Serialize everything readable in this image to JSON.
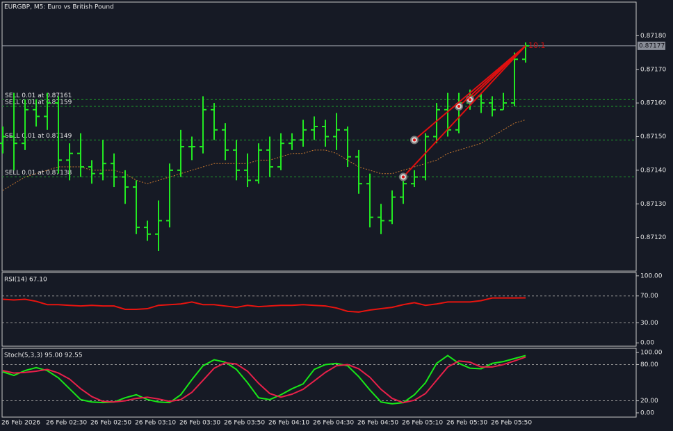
{
  "chart_data": [
    {
      "type": "ohlc",
      "title": "EURGBP, M5:  Euro vs British Pound",
      "color": "#22e822",
      "categories": [
        "26 Feb 2026",
        null,
        null,
        null,
        "26 Feb 02:30",
        null,
        null,
        null,
        "26 Feb 02:50",
        null,
        null,
        null,
        "26 Feb 03:10",
        null,
        null,
        null,
        "26 Feb 03:30",
        null,
        null,
        null,
        "26 Feb 03:50",
        null,
        null,
        null,
        "26 Feb 04:10",
        null,
        null,
        null,
        "26 Feb 04:30",
        null,
        null,
        null,
        "26 Feb 04:50",
        null,
        null,
        null,
        "26 Feb 05:10",
        null,
        null,
        null,
        "26 Feb 05:30",
        null,
        null,
        null,
        "26 Feb 05:50",
        null,
        null,
        null
      ],
      "open": [
        0.87148,
        0.8715,
        0.87148,
        0.87158,
        0.87156,
        0.8716,
        0.87143,
        0.87145,
        0.87141,
        0.87139,
        0.87142,
        0.87138,
        0.87135,
        0.87123,
        0.87121,
        0.87125,
        0.8714,
        0.87147,
        0.87147,
        0.87158,
        0.87152,
        0.87146,
        0.8714,
        0.87137,
        0.87146,
        0.87141,
        0.87148,
        0.87149,
        0.87152,
        0.87153,
        0.8715,
        0.87152,
        0.87144,
        0.87136,
        0.87126,
        0.87125,
        0.87132,
        0.87136,
        0.87138,
        0.8715,
        0.87158,
        0.87152,
        0.8716,
        0.87162,
        0.8716,
        0.87158,
        0.8716,
        0.87173
      ],
      "high": [
        0.87153,
        0.87163,
        0.87161,
        0.87161,
        0.87163,
        0.87162,
        0.87148,
        0.87151,
        0.87143,
        0.87149,
        0.87145,
        0.8714,
        0.87137,
        0.87125,
        0.87131,
        0.87142,
        0.87152,
        0.8715,
        0.87162,
        0.8716,
        0.87154,
        0.87149,
        0.87145,
        0.87148,
        0.8715,
        0.87151,
        0.87151,
        0.87155,
        0.87156,
        0.87155,
        0.87157,
        0.87153,
        0.87146,
        0.87139,
        0.8713,
        0.87134,
        0.87138,
        0.8714,
        0.87151,
        0.8716,
        0.87163,
        0.87163,
        0.87164,
        0.87163,
        0.87162,
        0.87163,
        0.87175,
        0.87178
      ],
      "low": [
        0.87145,
        0.8714,
        0.87146,
        0.87153,
        0.87152,
        0.87139,
        0.87137,
        0.87138,
        0.87136,
        0.87137,
        0.87135,
        0.8713,
        0.87121,
        0.87119,
        0.87116,
        0.87123,
        0.87138,
        0.87143,
        0.87145,
        0.87149,
        0.87143,
        0.87137,
        0.87135,
        0.87136,
        0.87138,
        0.8714,
        0.87146,
        0.87147,
        0.87149,
        0.87147,
        0.87146,
        0.87141,
        0.87133,
        0.87123,
        0.87121,
        0.87124,
        0.8713,
        0.87135,
        0.87137,
        0.87148,
        0.8715,
        0.87151,
        0.87158,
        0.87157,
        0.87156,
        0.87158,
        0.87159,
        0.87172
      ],
      "close": [
        0.8715,
        0.87148,
        0.87158,
        0.87156,
        0.8716,
        0.87143,
        0.87145,
        0.87141,
        0.87139,
        0.87142,
        0.87138,
        0.87135,
        0.87123,
        0.87121,
        0.87125,
        0.8714,
        0.87147,
        0.87147,
        0.87158,
        0.87152,
        0.87146,
        0.8714,
        0.87137,
        0.87146,
        0.87141,
        0.87148,
        0.87149,
        0.87152,
        0.87153,
        0.8715,
        0.87152,
        0.87144,
        0.87136,
        0.87126,
        0.87125,
        0.87132,
        0.87136,
        0.87138,
        0.8715,
        0.87158,
        0.87152,
        0.8716,
        0.87162,
        0.8716,
        0.87158,
        0.8716,
        0.87173,
        0.87177
      ],
      "ma": {
        "color": "#c8782f",
        "values": [
          0.87134,
          0.87136,
          0.87138,
          0.87139,
          0.8714,
          0.87141,
          0.87141,
          0.87141,
          0.8714,
          0.8714,
          0.8714,
          0.87139,
          0.87137,
          0.87136,
          0.87137,
          0.87138,
          0.87139,
          0.8714,
          0.87141,
          0.87142,
          0.87142,
          0.87142,
          0.87142,
          0.87143,
          0.87143,
          0.87144,
          0.87145,
          0.87145,
          0.87146,
          0.87146,
          0.87145,
          0.87143,
          0.87141,
          0.8714,
          0.87139,
          0.87139,
          0.8714,
          0.87141,
          0.87142,
          0.87143,
          0.87145,
          0.87146,
          0.87147,
          0.87148,
          0.8715,
          0.87152,
          0.87154,
          0.87155
        ]
      },
      "ylim": [
        0.8711,
        0.8719
      ],
      "yticks": [
        {
          "value": 0.8718,
          "label": "0.87180"
        },
        {
          "value": 0.8717,
          "label": "0.87170"
        },
        {
          "value": 0.8716,
          "label": "0.87160"
        },
        {
          "value": 0.8715,
          "label": "0.87150"
        },
        {
          "value": 0.8714,
          "label": "0.87140"
        },
        {
          "value": 0.8713,
          "label": "0.87130"
        },
        {
          "value": 0.8712,
          "label": "0.87120"
        }
      ],
      "current_price": 0.87177,
      "orders": [
        {
          "label": "SELL 0.01 at 0.87161",
          "price": 0.87161,
          "entry_bar": 42
        },
        {
          "label": "SELL 0.01 at 0.87159",
          "price": 0.87159,
          "entry_bar": 41
        },
        {
          "label": "SELL 0.01 at 0.87149",
          "price": 0.87149,
          "entry_bar": 37
        },
        {
          "label": "SELL 0.01 at 0.87138",
          "price": 0.87138,
          "entry_bar": 36
        }
      ],
      "profit_label": 10.1
    },
    {
      "type": "line",
      "title": "RSI(14) 67.10",
      "series": [
        {
          "color": "#e8140f",
          "values": [
            65,
            64,
            65,
            62,
            57,
            57,
            56,
            55,
            56,
            55,
            55,
            50,
            50,
            51,
            56,
            57,
            58,
            61,
            57,
            57,
            55,
            53,
            56,
            54,
            55,
            56,
            56,
            57,
            56,
            55,
            52,
            47,
            46,
            49,
            51,
            53,
            57,
            60,
            56,
            58,
            61,
            61,
            61,
            63,
            67,
            67,
            67,
            67.1
          ]
        }
      ],
      "ylim": [
        -5,
        105
      ],
      "yticks": [
        {
          "value": 100,
          "label": "100.00"
        },
        {
          "value": 70,
          "label": "70.00"
        },
        {
          "value": 30,
          "label": "30.00"
        },
        {
          "value": 0,
          "label": "0.00"
        }
      ],
      "levels": [
        70,
        30
      ]
    },
    {
      "type": "line",
      "title": "Stoch(5,3,3) 95.00 92.55",
      "series": [
        {
          "color": "#18e818",
          "values": [
            68,
            62,
            70,
            75,
            70,
            58,
            40,
            22,
            18,
            17,
            18,
            25,
            30,
            22,
            18,
            17,
            30,
            55,
            78,
            88,
            84,
            72,
            50,
            25,
            22,
            30,
            40,
            48,
            72,
            80,
            82,
            78,
            60,
            38,
            18,
            15,
            17,
            30,
            50,
            82,
            95,
            82,
            74,
            73,
            82,
            85,
            90,
            95
          ]
        },
        {
          "color": "#e8204a",
          "values": [
            70,
            66,
            67,
            69,
            72,
            66,
            56,
            40,
            27,
            19,
            18,
            20,
            24,
            26,
            23,
            19,
            22,
            34,
            54,
            74,
            83,
            81,
            69,
            49,
            32,
            26,
            31,
            39,
            53,
            67,
            78,
            80,
            73,
            59,
            39,
            24,
            17,
            21,
            32,
            54,
            76,
            86,
            84,
            76,
            76,
            80,
            86,
            92.55
          ]
        }
      ],
      "ylim": [
        -7,
        107
      ],
      "yticks": [
        {
          "value": 100,
          "label": "100.00"
        },
        {
          "value": 80,
          "label": "80.00"
        },
        {
          "value": 20,
          "label": "20.00"
        },
        {
          "value": 0,
          "label": "0.00"
        }
      ],
      "levels": [
        80,
        20
      ]
    }
  ]
}
